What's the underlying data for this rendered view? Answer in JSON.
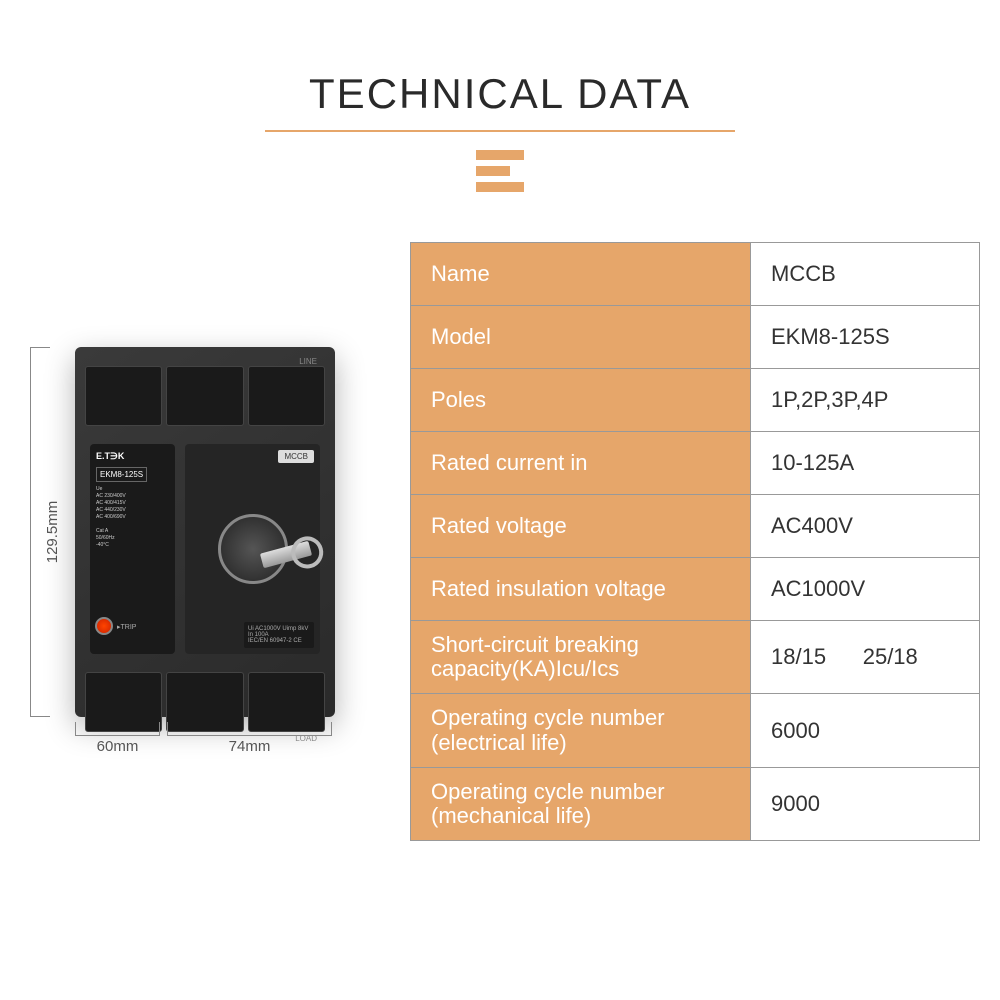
{
  "title": "TECHNICAL DATA",
  "accent_color": "#e6a66a",
  "text_color": "#2a2a2a",
  "product": {
    "brand": "E.T∋K",
    "model_label": "EKM8-125S",
    "line_text": "LINE",
    "load_text": "LOAD",
    "mccb_tag": "MCCB",
    "specs_text": "Ue\nAC 230/400V\nAC 400/415V\nAC 440/230V\nAC 400/690V\n\nCat A\n50/60Hz\n-40°C",
    "trip_text": "▸TRIP",
    "info_text": "Ui AC1000V  Uimp 8kV\nIn          100A\nIEC/EN 60947-2    CE"
  },
  "dimensions": {
    "height": "129.5mm",
    "depth": "60mm",
    "width": "74mm"
  },
  "rows": [
    {
      "label": "Name",
      "value": "MCCB",
      "tall": false
    },
    {
      "label": "Model",
      "value": "EKM8-125S",
      "tall": false
    },
    {
      "label": "Poles",
      "value": "1P,2P,3P,4P",
      "tall": false
    },
    {
      "label": "Rated current in",
      "value": "10-125A",
      "tall": false
    },
    {
      "label": "Rated voltage",
      "value": "AC400V",
      "tall": false
    },
    {
      "label": "Rated insulation voltage",
      "value": "AC1000V",
      "tall": false
    },
    {
      "label": "Short-circuit breaking capacity(KA)Icu/Ics",
      "value": "18/15      25/18",
      "tall": true
    },
    {
      "label": "Operating cycle number (electrical life)",
      "value": "6000",
      "tall": true
    },
    {
      "label": "Operating cycle number (mechanical life)",
      "value": "9000",
      "tall": true
    }
  ]
}
